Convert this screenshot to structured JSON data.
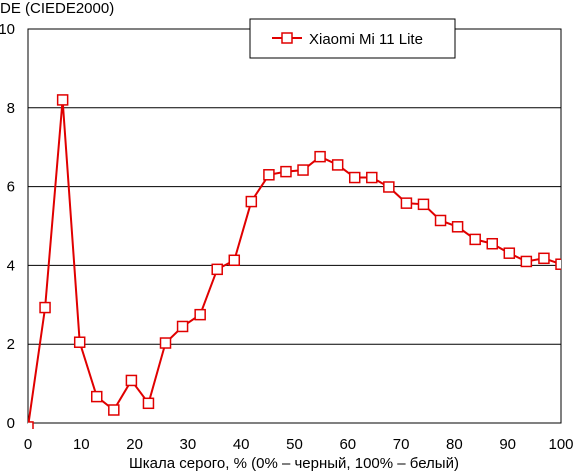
{
  "chart_data": {
    "type": "line",
    "title": "DE (CIEDE2000)",
    "xlabel": "Шкала серого, % (0% – черный, 100% – белый)",
    "ylabel": "",
    "xlim": [
      0,
      100
    ],
    "ylim": [
      0,
      10
    ],
    "x_ticks": [
      "0",
      "10",
      "20",
      "30",
      "40",
      "50",
      "60",
      "70",
      "80",
      "90",
      "100"
    ],
    "y_ticks": [
      "0",
      "2",
      "4",
      "6",
      "8",
      "10"
    ],
    "grid": "horizontal",
    "legend": "top-right",
    "series": [
      {
        "name": "Xiaomi Mi 11 Lite",
        "color": "#e00000",
        "marker": "hollow-square",
        "x": [
          0,
          3.2,
          6.5,
          9.7,
          12.9,
          16.1,
          19.4,
          22.6,
          25.8,
          29.0,
          32.3,
          35.5,
          38.7,
          41.9,
          45.2,
          48.4,
          51.6,
          54.8,
          58.1,
          61.3,
          64.5,
          67.7,
          71.0,
          74.2,
          77.4,
          80.6,
          83.9,
          87.1,
          90.3,
          93.5,
          96.8,
          100
        ],
        "y": [
          -0.1,
          2.93,
          8.2,
          2.05,
          0.67,
          0.33,
          1.08,
          0.5,
          2.03,
          2.45,
          2.75,
          3.9,
          4.13,
          5.62,
          6.3,
          6.38,
          6.42,
          6.76,
          6.55,
          6.23,
          6.23,
          5.99,
          5.58,
          5.55,
          5.14,
          4.98,
          4.66,
          4.55,
          4.31,
          4.1,
          4.18,
          4.03
        ]
      }
    ]
  }
}
